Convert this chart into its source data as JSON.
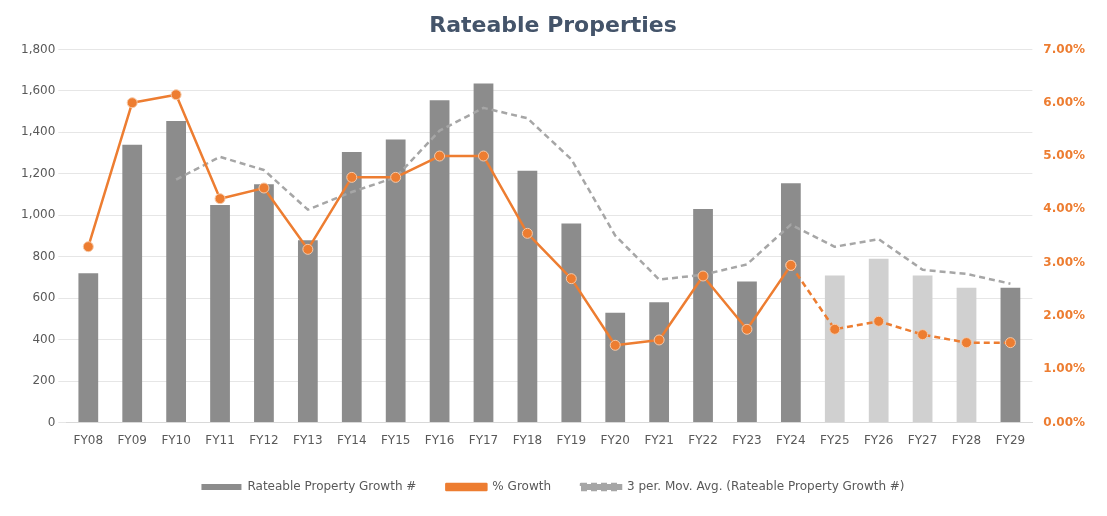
{
  "chart_data": {
    "type": "bar",
    "title": "Rateable Properties",
    "categories": [
      "FY08",
      "FY09",
      "FY10",
      "FY11",
      "FY12",
      "FY13",
      "FY14",
      "FY15",
      "FY16",
      "FY17",
      "FY18",
      "FY19",
      "FY20",
      "FY21",
      "FY22",
      "FY23",
      "FY24",
      "FY25",
      "FY26",
      "FY27",
      "FY28",
      "FY29"
    ],
    "series": [
      {
        "name": "Rateable Property Growth #",
        "color": "#8c8c8c",
        "colors": [
          "#8c8c8c",
          "#8c8c8c",
          "#8c8c8c",
          "#8c8c8c",
          "#8c8c8c",
          "#8c8c8c",
          "#8c8c8c",
          "#8c8c8c",
          "#8c8c8c",
          "#8c8c8c",
          "#8c8c8c",
          "#8c8c8c",
          "#8c8c8c",
          "#8c8c8c",
          "#8c8c8c",
          "#8c8c8c",
          "#8c8c8c",
          "#d0d0d0",
          "#d0d0d0",
          "#d0d0d0",
          "#d0d0d0",
          "#8c8c8c"
        ],
        "values": [
          720,
          1340,
          1455,
          1050,
          1150,
          880,
          1305,
          1365,
          1555,
          1635,
          1215,
          960,
          530,
          580,
          1030,
          680,
          1155,
          710,
          790,
          710,
          650,
          650
        ]
      },
      {
        "name": "% Growth",
        "type": "line",
        "axis": "y2",
        "color": "#ed7d31",
        "marker": "circle",
        "line_style": "solid",
        "values": [
          3.3,
          6.0,
          6.15,
          4.2,
          4.4,
          3.25,
          4.6,
          4.6,
          5.0,
          5.0,
          3.55,
          2.7,
          1.45,
          1.55,
          2.75,
          1.75,
          2.95,
          null,
          null,
          null,
          null,
          null
        ]
      },
      {
        "type": "line",
        "axis": "y2",
        "color": "#ed7d31",
        "marker": "circle",
        "line_style": "dashed",
        "values": [
          null,
          null,
          null,
          null,
          null,
          null,
          null,
          null,
          null,
          null,
          null,
          null,
          null,
          null,
          null,
          null,
          2.95,
          1.75,
          1.9,
          1.65,
          1.5,
          1.5
        ]
      },
      {
        "name": "3 per. Mov. Avg. (Rateable Property Growth #)",
        "type": "line",
        "color": "#a6a6a6",
        "marker": "none",
        "line_style": "dashed",
        "values": [
          null,
          null,
          1172,
          1282,
          1218,
          1027,
          1112,
          1183,
          1408,
          1518,
          1468,
          1270,
          902,
          690,
          713,
          763,
          955,
          848,
          885,
          737,
          717,
          670
        ]
      }
    ],
    "ylim": [
      0,
      1800
    ],
    "yticks": [
      0,
      200,
      400,
      600,
      800,
      {
        "value": 1000,
        "label": "1,000"
      },
      {
        "value": 1200,
        "label": "1,200"
      },
      {
        "value": 1400,
        "label": "1,400"
      },
      {
        "value": 1600,
        "label": "1,600"
      },
      {
        "value": 1800,
        "label": "1,800"
      }
    ],
    "y2lim": [
      0,
      7
    ],
    "y2ticks": [
      {
        "value": 0,
        "label": "0.00%"
      },
      {
        "value": 1,
        "label": "1.00%"
      },
      {
        "value": 2,
        "label": "2.00%"
      },
      {
        "value": 3,
        "label": "3.00%"
      },
      {
        "value": 4,
        "label": "4.00%"
      },
      {
        "value": 5,
        "label": "5.00%"
      },
      {
        "value": 6,
        "label": "6.00%"
      },
      {
        "value": 7,
        "label": "7.00%"
      }
    ],
    "grid": "y",
    "legend": "bottom"
  }
}
